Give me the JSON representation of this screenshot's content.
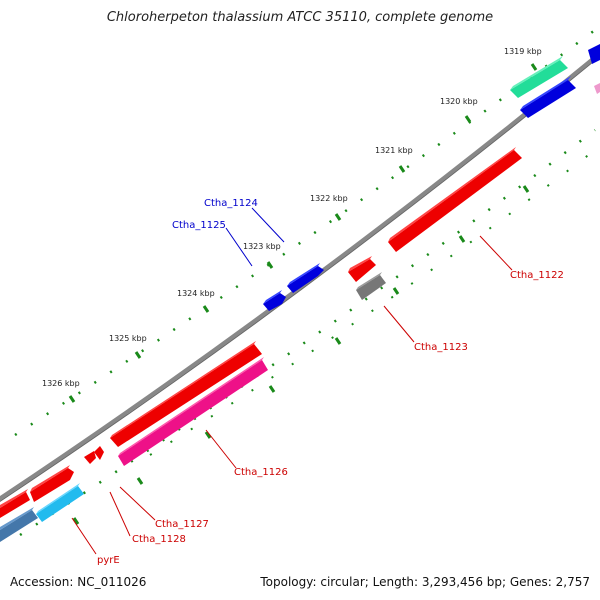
{
  "title": "Chloroherpeton thalassium ATCC 35110, complete genome",
  "footer": {
    "accession": "Accession: NC_011026",
    "stats": "Topology: circular; Length: 3,293,456 bp; Genes: 2,757"
  },
  "ticks": [
    "1319 kbp",
    "1320 kbp",
    "1321 kbp",
    "1322 kbp",
    "1323 kbp",
    "1324 kbp",
    "1325 kbp",
    "1326 kbp"
  ],
  "labels": {
    "ctha_1124": "Ctha_1124",
    "ctha_1125": "Ctha_1125",
    "ctha_1122": "Ctha_1122",
    "ctha_1123": "Ctha_1123",
    "ctha_1126": "Ctha_1126",
    "ctha_1127": "Ctha_1127",
    "ctha_1128": "Ctha_1128",
    "pyrE": "pyrE"
  },
  "colors": {
    "red": "#ee0000",
    "blue": "#0000dd",
    "pink": "#ee1188",
    "cyan": "#22bbee",
    "teal": "#22dd99",
    "gray": "#777777",
    "steel": "#4477aa",
    "label_blue": "#0000cc",
    "label_red": "#cc0000"
  }
}
